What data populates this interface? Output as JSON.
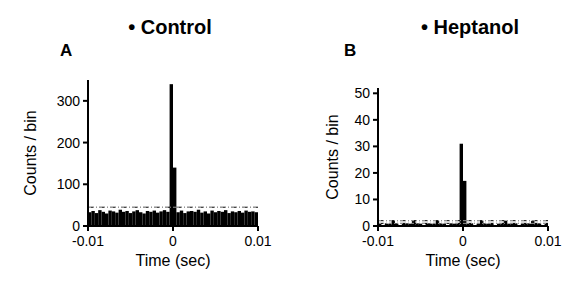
{
  "chart_data": [
    {
      "type": "histogram",
      "title": "• Control",
      "panel": "A",
      "x_label": "Time (sec)",
      "y_label": "Counts / bin",
      "bins": [
        -0.01,
        -0.0096,
        -0.0092,
        -0.0088,
        -0.0084,
        -0.008,
        -0.0076,
        -0.0072,
        -0.0068,
        -0.0064,
        -0.006,
        -0.0056,
        -0.0052,
        -0.0048,
        -0.0044,
        -0.004,
        -0.0036,
        -0.0032,
        -0.0028,
        -0.0024,
        -0.002,
        -0.0016,
        -0.0012,
        -0.0008,
        -0.0004,
        0,
        0.0004,
        0.0008,
        0.0012,
        0.0016,
        0.002,
        0.0024,
        0.0028,
        0.0032,
        0.0036,
        0.004,
        0.0044,
        0.0048,
        0.0052,
        0.0056,
        0.006,
        0.0064,
        0.0068,
        0.0072,
        0.0076,
        0.008,
        0.0084,
        0.0088,
        0.0092,
        0.0096,
        0.01
      ],
      "values": [
        33,
        36,
        31,
        38,
        34,
        30,
        37,
        35,
        32,
        39,
        34,
        36,
        31,
        35,
        38,
        33,
        30,
        36,
        34,
        37,
        32,
        35,
        38,
        34,
        340,
        140,
        33,
        37,
        31,
        35,
        36,
        34,
        39,
        32,
        35,
        30,
        37,
        33,
        36,
        34,
        38,
        31,
        35,
        33,
        36,
        32,
        37,
        34,
        35,
        33
      ],
      "confidence_limits": [
        45
      ],
      "color": "#000000",
      "xlim": [
        -0.01,
        0.01
      ],
      "xticks": [
        -0.01,
        0,
        0.01
      ],
      "ylim": [
        0,
        350
      ],
      "yticks": [
        0,
        100,
        200,
        300
      ],
      "grid": false
    },
    {
      "type": "histogram",
      "title": "• Heptanol",
      "panel": "B",
      "x_label": "Time (sec)",
      "y_label": "Counts / bin",
      "bins": [
        -0.01,
        -0.0096,
        -0.0092,
        -0.0088,
        -0.0084,
        -0.008,
        -0.0076,
        -0.0072,
        -0.0068,
        -0.0064,
        -0.006,
        -0.0056,
        -0.0052,
        -0.0048,
        -0.0044,
        -0.004,
        -0.0036,
        -0.0032,
        -0.0028,
        -0.0024,
        -0.002,
        -0.0016,
        -0.0012,
        -0.0008,
        -0.0004,
        0,
        0.0004,
        0.0008,
        0.0012,
        0.0016,
        0.002,
        0.0024,
        0.0028,
        0.0032,
        0.0036,
        0.004,
        0.0044,
        0.0048,
        0.0052,
        0.0056,
        0.006,
        0.0064,
        0.0068,
        0.0072,
        0.0076,
        0.008,
        0.0084,
        0.0088,
        0.0092,
        0.0096,
        0.01
      ],
      "values": [
        1,
        0,
        1,
        1,
        2,
        1,
        0,
        1,
        1,
        1,
        2,
        1,
        1,
        0,
        1,
        1,
        1,
        2,
        1,
        1,
        0,
        1,
        1,
        1,
        31,
        17,
        1,
        1,
        0,
        1,
        2,
        1,
        1,
        1,
        0,
        1,
        1,
        2,
        1,
        1,
        1,
        0,
        1,
        1,
        1,
        2,
        1,
        1,
        0,
        1
      ],
      "confidence_limits": [
        1,
        2
      ],
      "color": "#000000",
      "xlim": [
        -0.01,
        0.01
      ],
      "xticks": [
        -0.01,
        0,
        0.01
      ],
      "ylim": [
        0,
        52
      ],
      "yticks": [
        0,
        10,
        20,
        30,
        40,
        50
      ],
      "grid": false
    }
  ]
}
